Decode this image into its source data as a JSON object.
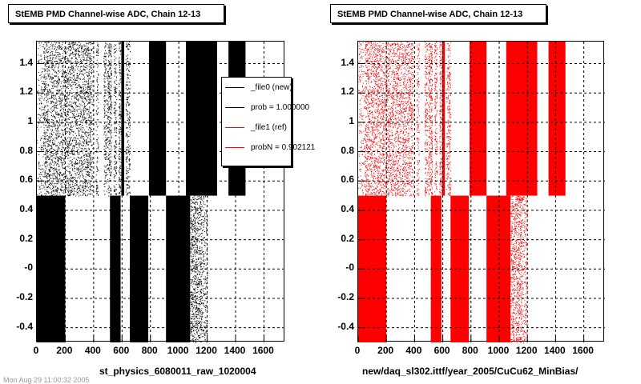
{
  "panels": [
    {
      "title": "StEMB PMD Channel-wise ADC, Chain 12-13",
      "xlabel": "st_physics_6080011_raw_1020004",
      "color": "#000000"
    },
    {
      "title": "StEMB PMD Channel-wise ADC, Chain 12-13",
      "xlabel": "new/daq_sl302.ittf/year_2005/CuCu62_MinBias/",
      "color": "#ff0000"
    }
  ],
  "legend": {
    "entries": [
      {
        "label": "_file0 (new)",
        "color": "#000000"
      },
      {
        "label": "prob = 1.000000",
        "color": "#000000"
      },
      {
        "label": "_file1 (ref)",
        "color": "#ff0000"
      },
      {
        "label": "probN = 0.902121",
        "color": "#ff0000"
      }
    ]
  },
  "footer": "Mon Aug 29 11:00:32 2005",
  "chart_data": [
    {
      "type": "scatter",
      "title": "StEMB PMD Channel-wise ADC, Chain 12-13",
      "xlabel": "st_physics_6080011_raw_1020004",
      "ylabel": "",
      "xlim": [
        0,
        1750
      ],
      "ylim": [
        -0.5,
        1.55
      ],
      "xticks": [
        0,
        200,
        400,
        600,
        800,
        1000,
        1200,
        1400,
        1600
      ],
      "yticks": [
        -0.4,
        -0.2,
        0,
        0.2,
        0.4,
        0.6,
        0.8,
        1,
        1.2,
        1.4
      ],
      "ytick_labels": [
        "-0.4",
        "-0.2",
        "-0",
        "0.2",
        "0.4",
        "0.6",
        "0.8",
        "1",
        "1.2",
        "1.4"
      ],
      "grid": true,
      "series_color": "#000000",
      "bands": [
        {
          "x": [
            0,
            45
          ],
          "y": [
            0.5,
            1.55
          ],
          "density": 0.18
        },
        {
          "x": [
            45,
            385
          ],
          "y": [
            0.5,
            1.55
          ],
          "density": 0.45
        },
        {
          "x": [
            385,
            395
          ],
          "y": [
            0.5,
            1.55
          ],
          "density": 0.25
        },
        {
          "x": [
            415,
            432
          ],
          "y": [
            0.5,
            1.55
          ],
          "density": 0.4
        },
        {
          "x": [
            470,
            490
          ],
          "y": [
            0.5,
            1.55
          ],
          "density": 0.45
        },
        {
          "x": [
            495,
            525
          ],
          "y": [
            0.5,
            1.55
          ],
          "density": 0.6
        },
        {
          "x": [
            540,
            560
          ],
          "y": [
            0.5,
            1.55
          ],
          "density": 0.5
        },
        {
          "x": [
            575,
            590
          ],
          "y": [
            0.5,
            1.55
          ],
          "density": 0.6
        },
        {
          "x": [
            595,
            615
          ],
          "y": [
            0.5,
            1.55
          ],
          "density": 0.95
        },
        {
          "x": [
            625,
            655
          ],
          "y": [
            0.5,
            1.55
          ],
          "density": 0.45
        },
        {
          "x": [
            790,
            910
          ],
          "y": [
            0.5,
            1.55
          ],
          "density": 1.0
        },
        {
          "x": [
            1050,
            1270
          ],
          "y": [
            0.5,
            1.55
          ],
          "density": 1.0
        },
        {
          "x": [
            1350,
            1470
          ],
          "y": [
            0.5,
            1.55
          ],
          "density": 1.0
        },
        {
          "x": [
            0,
            200
          ],
          "y": [
            -0.5,
            0.5
          ],
          "density": 1.0
        },
        {
          "x": [
            515,
            590
          ],
          "y": [
            -0.5,
            0.5
          ],
          "density": 1.0
        },
        {
          "x": [
            655,
            785
          ],
          "y": [
            -0.5,
            0.5
          ],
          "density": 1.0
        },
        {
          "x": [
            910,
            1080
          ],
          "y": [
            -0.5,
            0.5
          ],
          "density": 1.0
        },
        {
          "x": [
            1080,
            1160
          ],
          "y": [
            -0.5,
            0.5
          ],
          "density": 0.55
        },
        {
          "x": [
            1160,
            1200
          ],
          "y": [
            -0.5,
            0.5
          ],
          "density": 0.3
        }
      ]
    },
    {
      "type": "scatter",
      "title": "StEMB PMD Channel-wise ADC, Chain 12-13",
      "xlabel": "new/daq_sl302.ittf/year_2005/CuCu62_MinBias/",
      "ylabel": "",
      "xlim": [
        0,
        1750
      ],
      "ylim": [
        -0.5,
        1.55
      ],
      "xticks": [
        0,
        200,
        400,
        600,
        800,
        1000,
        1200,
        1400,
        1600
      ],
      "yticks": [
        -0.4,
        -0.2,
        0,
        0.2,
        0.4,
        0.6,
        0.8,
        1,
        1.2,
        1.4
      ],
      "ytick_labels": [
        "-0.4",
        "-0.2",
        "-0",
        "0.2",
        "0.4",
        "0.6",
        "0.8",
        "1",
        "1.2",
        "1.4"
      ],
      "grid": true,
      "series_color": "#ff0000",
      "bands": [
        {
          "x": [
            0,
            45
          ],
          "y": [
            0.5,
            1.55
          ],
          "density": 0.18
        },
        {
          "x": [
            45,
            385
          ],
          "y": [
            0.5,
            1.55
          ],
          "density": 0.45
        },
        {
          "x": [
            385,
            395
          ],
          "y": [
            0.5,
            1.55
          ],
          "density": 0.25
        },
        {
          "x": [
            415,
            432
          ],
          "y": [
            0.5,
            1.55
          ],
          "density": 0.4
        },
        {
          "x": [
            470,
            490
          ],
          "y": [
            0.5,
            1.55
          ],
          "density": 0.45
        },
        {
          "x": [
            495,
            525
          ],
          "y": [
            0.5,
            1.55
          ],
          "density": 0.6
        },
        {
          "x": [
            540,
            560
          ],
          "y": [
            0.5,
            1.55
          ],
          "density": 0.5
        },
        {
          "x": [
            575,
            590
          ],
          "y": [
            0.5,
            1.55
          ],
          "density": 0.6
        },
        {
          "x": [
            595,
            615
          ],
          "y": [
            0.5,
            1.55
          ],
          "density": 0.95
        },
        {
          "x": [
            625,
            655
          ],
          "y": [
            0.5,
            1.55
          ],
          "density": 0.45
        },
        {
          "x": [
            790,
            910
          ],
          "y": [
            0.5,
            1.55
          ],
          "density": 1.0
        },
        {
          "x": [
            1050,
            1270
          ],
          "y": [
            0.5,
            1.55
          ],
          "density": 1.0
        },
        {
          "x": [
            1350,
            1470
          ],
          "y": [
            0.5,
            1.55
          ],
          "density": 1.0
        },
        {
          "x": [
            0,
            200
          ],
          "y": [
            -0.5,
            0.5
          ],
          "density": 1.0
        },
        {
          "x": [
            515,
            590
          ],
          "y": [
            -0.5,
            0.5
          ],
          "density": 1.0
        },
        {
          "x": [
            655,
            785
          ],
          "y": [
            -0.5,
            0.5
          ],
          "density": 1.0
        },
        {
          "x": [
            910,
            1080
          ],
          "y": [
            -0.5,
            0.5
          ],
          "density": 1.0
        },
        {
          "x": [
            1080,
            1160
          ],
          "y": [
            -0.5,
            0.5
          ],
          "density": 0.55
        },
        {
          "x": [
            1160,
            1200
          ],
          "y": [
            -0.5,
            0.5
          ],
          "density": 0.3
        }
      ]
    }
  ]
}
